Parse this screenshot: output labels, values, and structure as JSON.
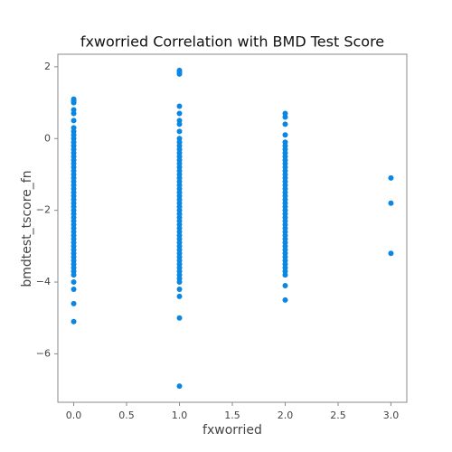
{
  "chart_data": {
    "type": "scatter",
    "title": "fxworried Correlation with BMD Test Score",
    "xlabel": "fxworried",
    "ylabel": "bmdtest_tscore_fn",
    "color": "#0b86e3",
    "xlim": [
      -0.15,
      3.15
    ],
    "ylim": [
      -7.35,
      2.35
    ],
    "xticks": [
      {
        "value": 0,
        "label": "0.0"
      },
      {
        "value": 0.5,
        "label": "0.5"
      },
      {
        "value": 1,
        "label": "1.0"
      },
      {
        "value": 1.5,
        "label": "1.5"
      },
      {
        "value": 2,
        "label": "2.0"
      },
      {
        "value": 2.5,
        "label": "2.5"
      },
      {
        "value": 3,
        "label": "3.0"
      }
    ],
    "yticks": [
      {
        "value": -6,
        "label": "−6"
      },
      {
        "value": -4,
        "label": "−4"
      },
      {
        "value": -2,
        "label": "−2"
      },
      0,
      2
    ],
    "x": [
      0,
      0,
      0,
      0,
      0,
      0,
      0,
      0,
      0,
      0,
      0,
      0,
      0,
      0,
      0,
      0,
      0,
      0,
      0,
      0,
      0,
      0,
      0,
      0,
      0,
      0,
      0,
      0,
      0,
      0,
      0,
      0,
      0,
      0,
      0,
      0,
      0,
      0,
      0,
      0,
      0,
      0,
      0,
      0,
      0,
      0,
      0,
      0,
      0,
      0,
      0,
      0,
      1,
      1,
      1,
      1,
      1,
      1,
      1,
      1,
      1,
      1,
      1,
      1,
      1,
      1,
      1,
      1,
      1,
      1,
      1,
      1,
      1,
      1,
      1,
      1,
      1,
      1,
      1,
      1,
      1,
      1,
      1,
      1,
      1,
      1,
      1,
      1,
      1,
      1,
      1,
      1,
      1,
      1,
      1,
      1,
      1,
      1,
      1,
      1,
      1,
      1,
      1,
      1,
      1,
      2,
      2,
      2,
      2,
      2,
      2,
      2,
      2,
      2,
      2,
      2,
      2,
      2,
      2,
      2,
      2,
      2,
      2,
      2,
      2,
      2,
      2,
      2,
      2,
      2,
      2,
      2,
      2,
      2,
      2,
      2,
      2,
      2,
      2,
      2,
      2,
      2,
      2,
      2,
      2,
      2,
      2,
      2,
      2,
      3,
      3,
      3
    ],
    "y": [
      1.1,
      1.05,
      1,
      0.8,
      0.7,
      0.5,
      0.3,
      0.2,
      0.1,
      0,
      -0.1,
      -0.2,
      -0.3,
      -0.4,
      -0.5,
      -0.6,
      -0.7,
      -0.8,
      -0.9,
      -1,
      -1.1,
      -1.2,
      -1.3,
      -1.4,
      -1.5,
      -1.6,
      -1.7,
      -1.8,
      -1.9,
      -2,
      -2.1,
      -2.2,
      -2.3,
      -2.4,
      -2.5,
      -2.6,
      -2.7,
      -2.8,
      -2.9,
      -3,
      -3.1,
      -3.2,
      -3.3,
      -3.4,
      -3.5,
      -3.6,
      -3.7,
      -3.8,
      -4,
      -4.2,
      -4.6,
      -5.1,
      1.9,
      1.85,
      1.8,
      0.9,
      0.7,
      0.5,
      0.4,
      0.2,
      0,
      -0.1,
      -0.2,
      -0.3,
      -0.4,
      -0.5,
      -0.6,
      -0.7,
      -0.8,
      -0.9,
      -1,
      -1.1,
      -1.2,
      -1.3,
      -1.4,
      -1.5,
      -1.6,
      -1.7,
      -1.8,
      -1.9,
      -2,
      -2.1,
      -2.2,
      -2.3,
      -2.4,
      -2.5,
      -2.6,
      -2.7,
      -2.8,
      -2.9,
      -3,
      -3.1,
      -3.2,
      -3.3,
      -3.4,
      -3.5,
      -3.6,
      -3.7,
      -3.8,
      -3.9,
      -4,
      -4.2,
      -4.4,
      -5,
      -6.9,
      0.7,
      0.6,
      0.4,
      0.1,
      -0.1,
      -0.2,
      -0.3,
      -0.4,
      -0.5,
      -0.6,
      -0.7,
      -0.8,
      -0.9,
      -1,
      -1.1,
      -1.2,
      -1.3,
      -1.4,
      -1.5,
      -1.6,
      -1.7,
      -1.8,
      -1.9,
      -2,
      -2.1,
      -2.2,
      -2.3,
      -2.4,
      -2.5,
      -2.6,
      -2.7,
      -2.8,
      -2.9,
      -3,
      -3.1,
      -3.2,
      -3.3,
      -3.4,
      -3.5,
      -3.6,
      -3.7,
      -3.8,
      -4.1,
      -4.5,
      -1.1,
      -1.8,
      -3.2
    ]
  }
}
